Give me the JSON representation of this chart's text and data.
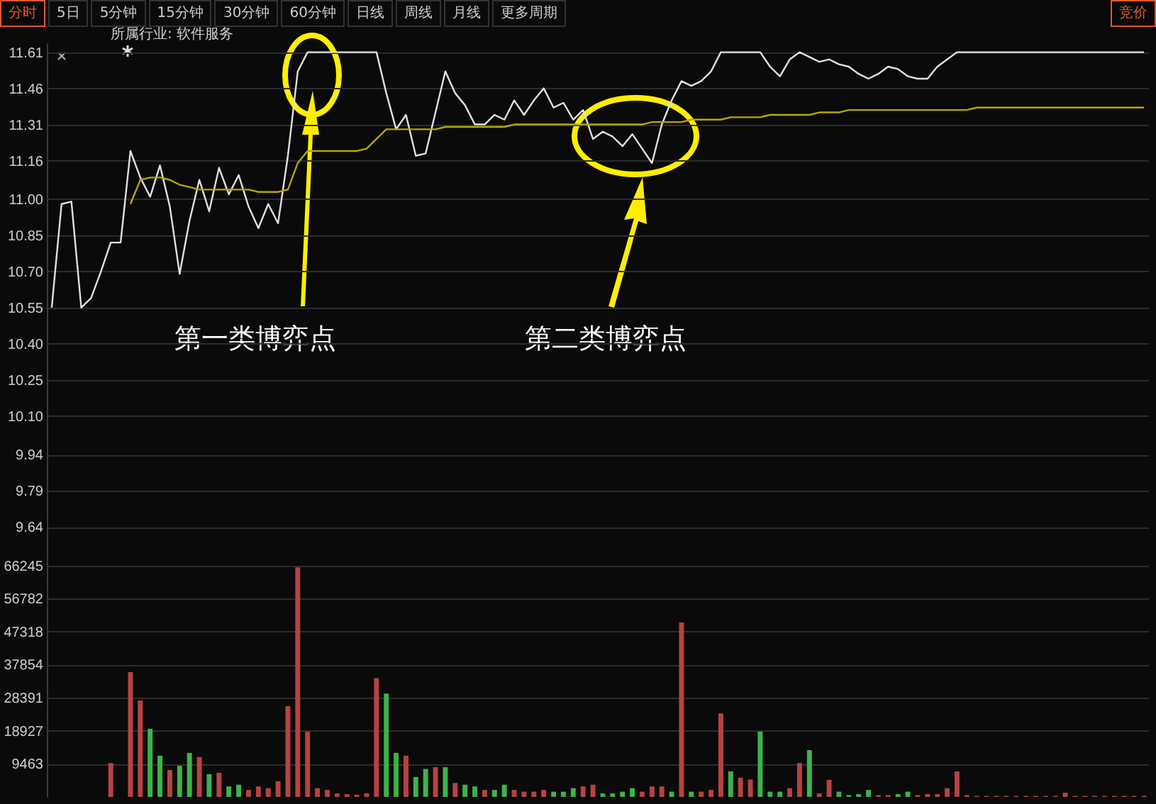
{
  "chart_data": [
    {
      "type": "line",
      "subtitle": "所属行业: 软件服务",
      "annotations": [
        "分时",
        "5日",
        "5分钟",
        "15分钟",
        "30分钟",
        "60分钟",
        "日线",
        "周线",
        "月线",
        "更多周期",
        "竞价",
        "第一类博弈点",
        "第二类博弈点"
      ],
      "categories": [
        null,
        null,
        null,
        null,
        null,
        null,
        null,
        null,
        null,
        null,
        null,
        null,
        null,
        null,
        null,
        null,
        null,
        null,
        null,
        null,
        null,
        null,
        null,
        null,
        null,
        null,
        null,
        null,
        null,
        null,
        null,
        null,
        null,
        null,
        null,
        null,
        null,
        null,
        null,
        null,
        null,
        null,
        null,
        null,
        null,
        null,
        null,
        null,
        null,
        null,
        null,
        null,
        null,
        null,
        null,
        null,
        null,
        null,
        null,
        null,
        null,
        null,
        null,
        null,
        null,
        null,
        null,
        null,
        null,
        null,
        null,
        null,
        null,
        null,
        null,
        null,
        null,
        null,
        null,
        null,
        null,
        null,
        null,
        null,
        null,
        null,
        null,
        null,
        null,
        null,
        null,
        null,
        null,
        null,
        null,
        null,
        null,
        null,
        null,
        null,
        null,
        null,
        null,
        null,
        null,
        null,
        null,
        null,
        null,
        null,
        null,
        null
      ],
      "series": [
        {
          "color": "#e0e0e0",
          "values": [
            10.55,
            10.98,
            10.99,
            10.55,
            10.59,
            10.7,
            10.82,
            10.82,
            11.2,
            11.09,
            11.01,
            11.14,
            10.97,
            10.69,
            10.91,
            11.08,
            10.95,
            11.13,
            11.02,
            11.1,
            10.97,
            10.88,
            10.98,
            10.9,
            11.18,
            11.53,
            11.61,
            11.61,
            11.61,
            11.61,
            11.61,
            11.61,
            11.61,
            11.61,
            11.44,
            11.29,
            11.35,
            11.18,
            11.19,
            11.36,
            11.53,
            11.44,
            11.39,
            11.31,
            11.31,
            11.35,
            11.33,
            11.41,
            11.35,
            11.41,
            11.46,
            11.38,
            11.4,
            11.33,
            11.37,
            11.25,
            11.28,
            11.26,
            11.22,
            11.27,
            11.21,
            11.15,
            11.31,
            11.41,
            11.49,
            11.47,
            11.49,
            11.53,
            11.61,
            11.61,
            11.61,
            11.61,
            11.61,
            11.55,
            11.51,
            11.58,
            11.61,
            11.59,
            11.57,
            11.58,
            11.56,
            11.55,
            11.52,
            11.5,
            11.52,
            11.55,
            11.54,
            11.51,
            11.5,
            11.5,
            11.55,
            11.58,
            11.61,
            11.61,
            11.61,
            11.61,
            11.61,
            11.61,
            11.61,
            11.61,
            11.61,
            11.61,
            11.61,
            11.61,
            11.61,
            11.61,
            11.61,
            11.61,
            11.61,
            11.61,
            11.61,
            11.61
          ]
        },
        {
          "color": "#b5a800",
          "values": [
            null,
            null,
            null,
            null,
            null,
            null,
            null,
            null,
            10.98,
            11.08,
            11.09,
            11.09,
            11.08,
            11.06,
            11.05,
            11.04,
            11.04,
            11.04,
            11.04,
            11.04,
            11.04,
            11.03,
            11.03,
            11.03,
            11.04,
            11.15,
            11.2,
            11.2,
            11.2,
            11.2,
            11.2,
            11.2,
            11.21,
            11.25,
            11.29,
            11.29,
            11.29,
            11.29,
            11.29,
            11.29,
            11.3,
            11.3,
            11.3,
            11.3,
            11.3,
            11.3,
            11.3,
            11.31,
            11.31,
            11.31,
            11.31,
            11.31,
            11.31,
            11.31,
            11.31,
            11.31,
            11.31,
            11.31,
            11.31,
            11.31,
            11.31,
            11.32,
            11.32,
            11.32,
            11.32,
            11.33,
            11.33,
            11.33,
            11.33,
            11.34,
            11.34,
            11.34,
            11.34,
            11.35,
            11.35,
            11.35,
            11.35,
            11.35,
            11.36,
            11.36,
            11.36,
            11.37,
            11.37,
            11.37,
            11.37,
            11.37,
            11.37,
            11.37,
            11.37,
            11.37,
            11.37,
            11.37,
            11.37,
            11.37,
            11.38,
            11.38,
            11.38,
            11.38,
            11.38,
            11.38,
            11.38,
            11.38,
            11.38,
            11.38,
            11.38,
            11.38,
            11.38,
            11.38,
            11.38,
            11.38,
            11.38,
            11.38
          ]
        }
      ],
      "ylim": [
        9.52,
        11.65
      ],
      "yticks": [
        9.64,
        9.79,
        9.94,
        {
          "value": 10.1,
          "label": "10.10"
        },
        10.25,
        {
          "value": 10.4,
          "label": "10.40"
        },
        10.55,
        {
          "value": 10.7,
          "label": "10.70"
        },
        10.85,
        {
          "value": 11,
          "label": "11.00"
        },
        11.16,
        11.31,
        11.46,
        11.61
      ],
      "grid": "y",
      "tick_labels": "y",
      "line_style": "solid"
    },
    {
      "type": "bar",
      "categories": [
        null,
        null,
        null,
        null,
        null,
        null,
        null,
        null,
        null,
        null,
        null,
        null,
        null,
        null,
        null,
        null,
        null,
        null,
        null,
        null,
        null,
        null,
        null,
        null,
        null,
        null,
        null,
        null,
        null,
        null,
        null,
        null,
        null,
        null,
        null,
        null,
        null,
        null,
        null,
        null,
        null,
        null,
        null,
        null,
        null,
        null,
        null,
        null,
        null,
        null,
        null,
        null,
        null,
        null,
        null,
        null,
        null,
        null,
        null,
        null,
        null,
        null,
        null,
        null,
        null,
        null,
        null,
        null,
        null,
        null,
        null,
        null,
        null,
        null,
        null,
        null,
        null,
        null,
        null,
        null,
        null,
        null,
        null,
        null,
        null,
        null,
        null,
        null,
        null,
        null,
        null,
        null,
        null,
        null,
        null,
        null,
        null,
        null,
        null,
        null,
        null,
        null,
        null,
        null,
        null,
        null,
        null,
        null,
        null,
        null,
        null,
        null
      ],
      "series": [
        {
          "color": "#b84242",
          "values": [
            null,
            null,
            null,
            null,
            null,
            null,
            9700,
            null,
            35700,
            27600,
            null,
            null,
            7700,
            null,
            null,
            11400,
            null,
            6900,
            null,
            null,
            2000,
            3000,
            2500,
            4500,
            26000,
            65700,
            18700,
            2500,
            2000,
            1000,
            800,
            600,
            1000,
            34000,
            null,
            null,
            11800,
            null,
            null,
            8500,
            null,
            4000,
            null,
            null,
            2000,
            null,
            null,
            2000,
            1500,
            1500,
            2000,
            null,
            null,
            null,
            3000,
            3500,
            null,
            null,
            null,
            null,
            1500,
            3000,
            3000,
            null,
            49900,
            null,
            1500,
            2000,
            23900,
            null,
            5500,
            5000,
            null,
            null,
            null,
            2500,
            9700,
            null,
            1000,
            4900,
            null,
            null,
            null,
            null,
            500,
            500,
            null,
            null,
            500,
            800,
            800,
            2500,
            7300,
            500,
            300,
            300,
            300,
            300,
            300,
            300,
            300,
            300,
            300,
            1200,
            300,
            300,
            300,
            300,
            300,
            300,
            300,
            300
          ]
        },
        {
          "color": "#3db34a",
          "values": [
            null,
            null,
            null,
            null,
            null,
            null,
            null,
            null,
            null,
            null,
            19500,
            11800,
            null,
            8900,
            12600,
            null,
            6500,
            null,
            3000,
            3500,
            null,
            null,
            null,
            null,
            null,
            null,
            null,
            null,
            null,
            null,
            null,
            null,
            null,
            null,
            29600,
            12600,
            null,
            5700,
            8000,
            null,
            8500,
            null,
            3500,
            3000,
            null,
            2000,
            3500,
            null,
            null,
            null,
            null,
            1500,
            1500,
            2500,
            null,
            null,
            1000,
            1000,
            1500,
            2500,
            null,
            null,
            null,
            1500,
            null,
            1500,
            null,
            null,
            null,
            7300,
            null,
            null,
            18700,
            1500,
            1500,
            null,
            null,
            13400,
            null,
            null,
            1500,
            500,
            800,
            2000,
            null,
            null,
            800,
            1500,
            null,
            null,
            null,
            null,
            null,
            null,
            null,
            null,
            null,
            null,
            null,
            null,
            null,
            null,
            null,
            null,
            null,
            null,
            null,
            null,
            null,
            null,
            null,
            null
          ]
        }
      ],
      "ylim": [
        0,
        69000
      ],
      "yticks": [
        9463,
        18927,
        28391,
        37854,
        47318,
        56782,
        66245
      ],
      "grid": "y",
      "tick_labels": "y"
    }
  ]
}
